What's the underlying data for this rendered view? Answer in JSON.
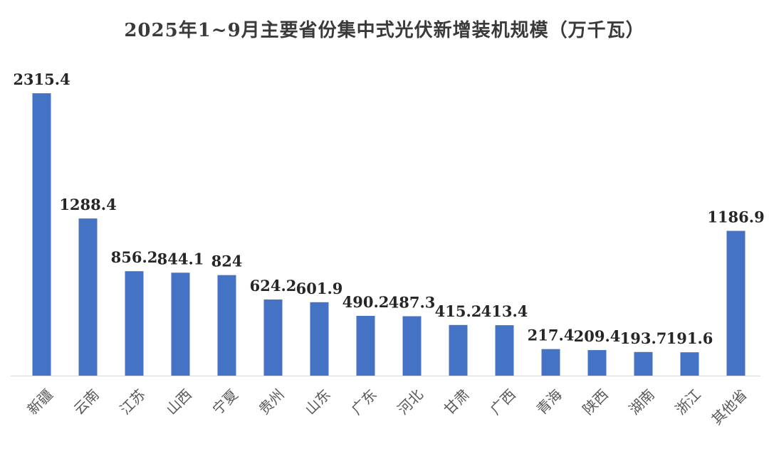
{
  "chart_data": {
    "type": "bar",
    "title": "2025年1~9月主要省份集中式光伏新增装机规模（万千瓦）",
    "xlabel": "",
    "ylabel": "",
    "ylim": [
      0,
      2450
    ],
    "grid": false,
    "legend": "none",
    "bar_color": "#4472C4",
    "categories": [
      "新疆",
      "云南",
      "江苏",
      "山西",
      "宁夏",
      "贵州",
      "山东",
      "广东",
      "河北",
      "甘肃",
      "广西",
      "青海",
      "陕西",
      "湖南",
      "浙江",
      "其他省"
    ],
    "values": [
      2315.4,
      1288.4,
      856.2,
      844.1,
      824,
      624.2,
      601.9,
      490.2,
      487.3,
      415.2,
      413.4,
      217.4,
      209.4,
      193.7,
      191.6,
      1186.9
    ],
    "value_labels": [
      "2315.4",
      "1288.4",
      "856.2",
      "844.1",
      "824",
      "624.2",
      "601.9",
      "490.2",
      "487.3",
      "415.2",
      "413.4",
      "217.4",
      "209.4",
      "193.7",
      "191.6",
      "1186.9"
    ]
  }
}
